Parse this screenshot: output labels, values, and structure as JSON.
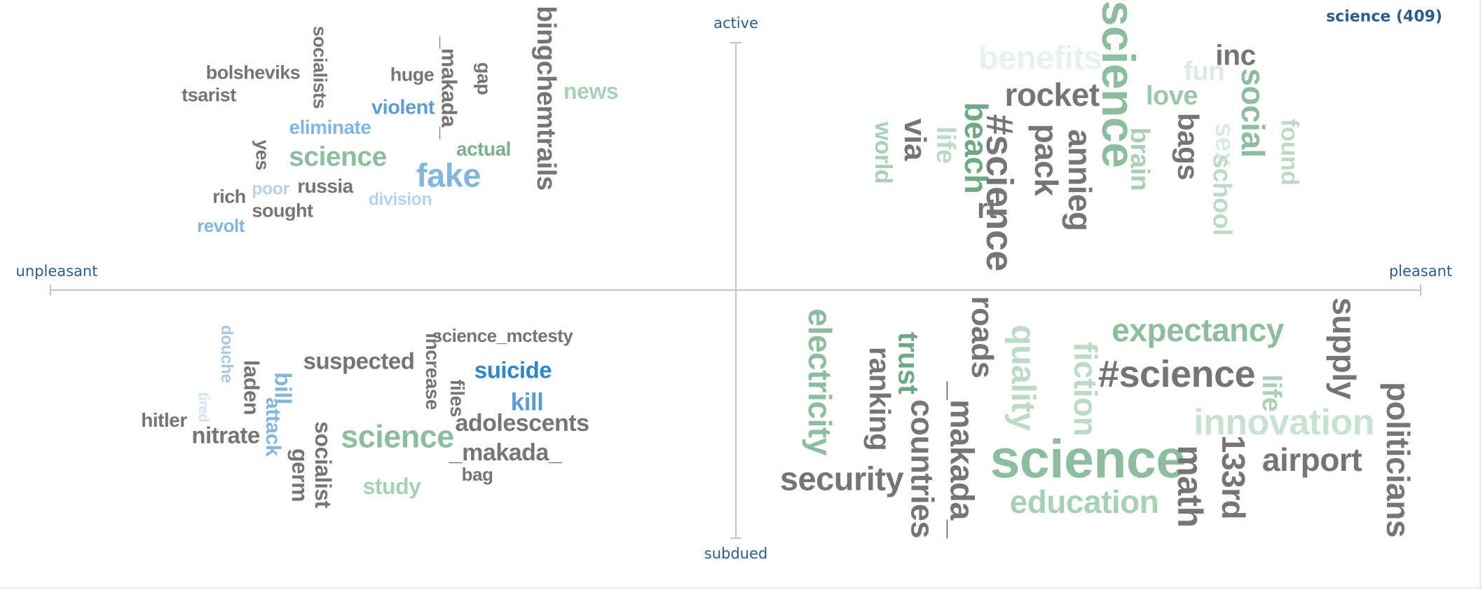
{
  "chart_data": {
    "type": "word-cloud",
    "summary": "science (409)",
    "axes": {
      "x": {
        "negative_label": "unpleasant",
        "positive_label": "pleasant"
      },
      "y": {
        "positive_label": "active",
        "negative_label": "subdued"
      }
    },
    "colors": {
      "axis_line": "#bfc6cc",
      "axis_label": "#2d5d86",
      "neutral_gray": "#757575",
      "pleasant_green": "#7cae8f",
      "unpleasant_blue": "#5d9ccc",
      "strong_blue": "#2f86c6",
      "pale_green": "#cfe3d6",
      "pale_blue": "#a9c6e2"
    },
    "quadrants": [
      {
        "name": "unpleasant-active",
        "words": [
          {
            "text": "bolsheviks",
            "color": "#757575",
            "rotated": false
          },
          {
            "text": "tsarist",
            "color": "#757575",
            "rotated": false
          },
          {
            "text": "socialists",
            "color": "#757575",
            "rotated": true
          },
          {
            "text": "huge",
            "color": "#757575",
            "rotated": false
          },
          {
            "text": "_makada_",
            "color": "#757575",
            "rotated": true
          },
          {
            "text": "gap",
            "color": "#757575",
            "rotated": true
          },
          {
            "text": "bingchemtrails",
            "color": "#757575",
            "rotated": true
          },
          {
            "text": "news",
            "color": "#a9cfb7",
            "rotated": false
          },
          {
            "text": "violent",
            "color": "#5d9ccc",
            "rotated": false
          },
          {
            "text": "eliminate",
            "color": "#84b6dc",
            "rotated": false
          },
          {
            "text": "actual",
            "color": "#7cae8f",
            "rotated": false
          },
          {
            "text": "yes",
            "color": "#757575",
            "rotated": true
          },
          {
            "text": "science",
            "color": "#8dbc9f",
            "rotated": false
          },
          {
            "text": "fake",
            "color": "#84b6dc",
            "rotated": false
          },
          {
            "text": "rich",
            "color": "#757575",
            "rotated": false
          },
          {
            "text": "poor",
            "color": "#b9d2ea",
            "rotated": false
          },
          {
            "text": "russia",
            "color": "#757575",
            "rotated": false
          },
          {
            "text": "division",
            "color": "#b9d2ea",
            "rotated": false
          },
          {
            "text": "sought",
            "color": "#757575",
            "rotated": false
          },
          {
            "text": "revolt",
            "color": "#84b6dc",
            "rotated": false
          }
        ]
      },
      {
        "name": "pleasant-active",
        "words": [
          {
            "text": "benefits",
            "color": "#e8f2ec",
            "rotated": false
          },
          {
            "text": "science",
            "color": "#8dbc9f",
            "rotated": true
          },
          {
            "text": "fun",
            "color": "#dcebe2",
            "rotated": false
          },
          {
            "text": "inc",
            "color": "#757575",
            "rotated": false
          },
          {
            "text": "rocket",
            "color": "#757575",
            "rotated": false
          },
          {
            "text": "love",
            "color": "#9cc7ab",
            "rotated": false
          },
          {
            "text": "social",
            "color": "#8dbc9f",
            "rotated": true
          },
          {
            "text": "found",
            "color": "#bcdac6",
            "rotated": true
          },
          {
            "text": "via",
            "color": "#757575",
            "rotated": true
          },
          {
            "text": "life",
            "color": "#bcdac6",
            "rotated": true
          },
          {
            "text": "beach",
            "color": "#6fa885",
            "rotated": true
          },
          {
            "text": "world",
            "color": "#a9cfb7",
            "rotated": true
          },
          {
            "text": "#science",
            "color": "#757575",
            "rotated": true
          },
          {
            "text": "pack",
            "color": "#757575",
            "rotated": true
          },
          {
            "text": "annieg",
            "color": "#757575",
            "rotated": true
          },
          {
            "text": "brain",
            "color": "#a9cfb7",
            "rotated": true
          },
          {
            "text": "bags",
            "color": "#757575",
            "rotated": true
          },
          {
            "text": "sex",
            "color": "#dcebe2",
            "rotated": true
          },
          {
            "text": "school",
            "color": "#bcdac6",
            "rotated": true
          },
          {
            "text": "rt",
            "color": "#757575",
            "rotated": false
          }
        ]
      },
      {
        "name": "unpleasant-subdued",
        "words": [
          {
            "text": "douche",
            "color": "#a9c6e2",
            "rotated": true
          },
          {
            "text": "tired",
            "color": "#d5e4f1",
            "rotated": true
          },
          {
            "text": "laden",
            "color": "#757575",
            "rotated": true
          },
          {
            "text": "bill",
            "color": "#84b6dc",
            "rotated": true
          },
          {
            "text": "suspected",
            "color": "#757575",
            "rotated": false
          },
          {
            "text": "increase",
            "color": "#757575",
            "rotated": true
          },
          {
            "text": "science_mctesty",
            "color": "#757575",
            "rotated": false
          },
          {
            "text": "files",
            "color": "#757575",
            "rotated": true
          },
          {
            "text": "suicide",
            "color": "#2f86c6",
            "rotated": false
          },
          {
            "text": "kill",
            "color": "#5d9ccc",
            "rotated": false
          },
          {
            "text": "hitler",
            "color": "#757575",
            "rotated": false
          },
          {
            "text": "nitrate",
            "color": "#757575",
            "rotated": false
          },
          {
            "text": "attack",
            "color": "#84b6dc",
            "rotated": true
          },
          {
            "text": "germ",
            "color": "#757575",
            "rotated": true
          },
          {
            "text": "socialist",
            "color": "#757575",
            "rotated": true
          },
          {
            "text": "science",
            "color": "#8dbc9f",
            "rotated": false
          },
          {
            "text": "adolescents",
            "color": "#757575",
            "rotated": false
          },
          {
            "text": "_makada_",
            "color": "#757575",
            "rotated": false
          },
          {
            "text": "bag",
            "color": "#757575",
            "rotated": false
          },
          {
            "text": "study",
            "color": "#a9cfb7",
            "rotated": false
          }
        ]
      },
      {
        "name": "pleasant-subdued",
        "words": [
          {
            "text": "electricity",
            "color": "#8dbc9f",
            "rotated": true
          },
          {
            "text": "trust",
            "color": "#6fa885",
            "rotated": true
          },
          {
            "text": "ranking",
            "color": "#757575",
            "rotated": true
          },
          {
            "text": "roads",
            "color": "#757575",
            "rotated": true
          },
          {
            "text": "quality",
            "color": "#bcdac6",
            "rotated": true
          },
          {
            "text": "fiction",
            "color": "#bcdac6",
            "rotated": true
          },
          {
            "text": "expectancy",
            "color": "#8dbc9f",
            "rotated": false
          },
          {
            "text": "supply",
            "color": "#757575",
            "rotated": true
          },
          {
            "text": "#science",
            "color": "#757575",
            "rotated": false
          },
          {
            "text": "life",
            "color": "#a9cfb7",
            "rotated": true
          },
          {
            "text": "countries",
            "color": "#757575",
            "rotated": true
          },
          {
            "text": "_makada_",
            "color": "#757575",
            "rotated": true
          },
          {
            "text": "innovation",
            "color": "#c9e1d1",
            "rotated": false
          },
          {
            "text": "politicians",
            "color": "#757575",
            "rotated": true
          },
          {
            "text": "science",
            "color": "#8dbc9f",
            "rotated": false
          },
          {
            "text": "airport",
            "color": "#757575",
            "rotated": false
          },
          {
            "text": "security",
            "color": "#757575",
            "rotated": false
          },
          {
            "text": "math",
            "color": "#757575",
            "rotated": true
          },
          {
            "text": "133rd",
            "color": "#757575",
            "rotated": true
          },
          {
            "text": "education",
            "color": "#a9cfb7",
            "rotated": false
          }
        ]
      }
    ]
  }
}
